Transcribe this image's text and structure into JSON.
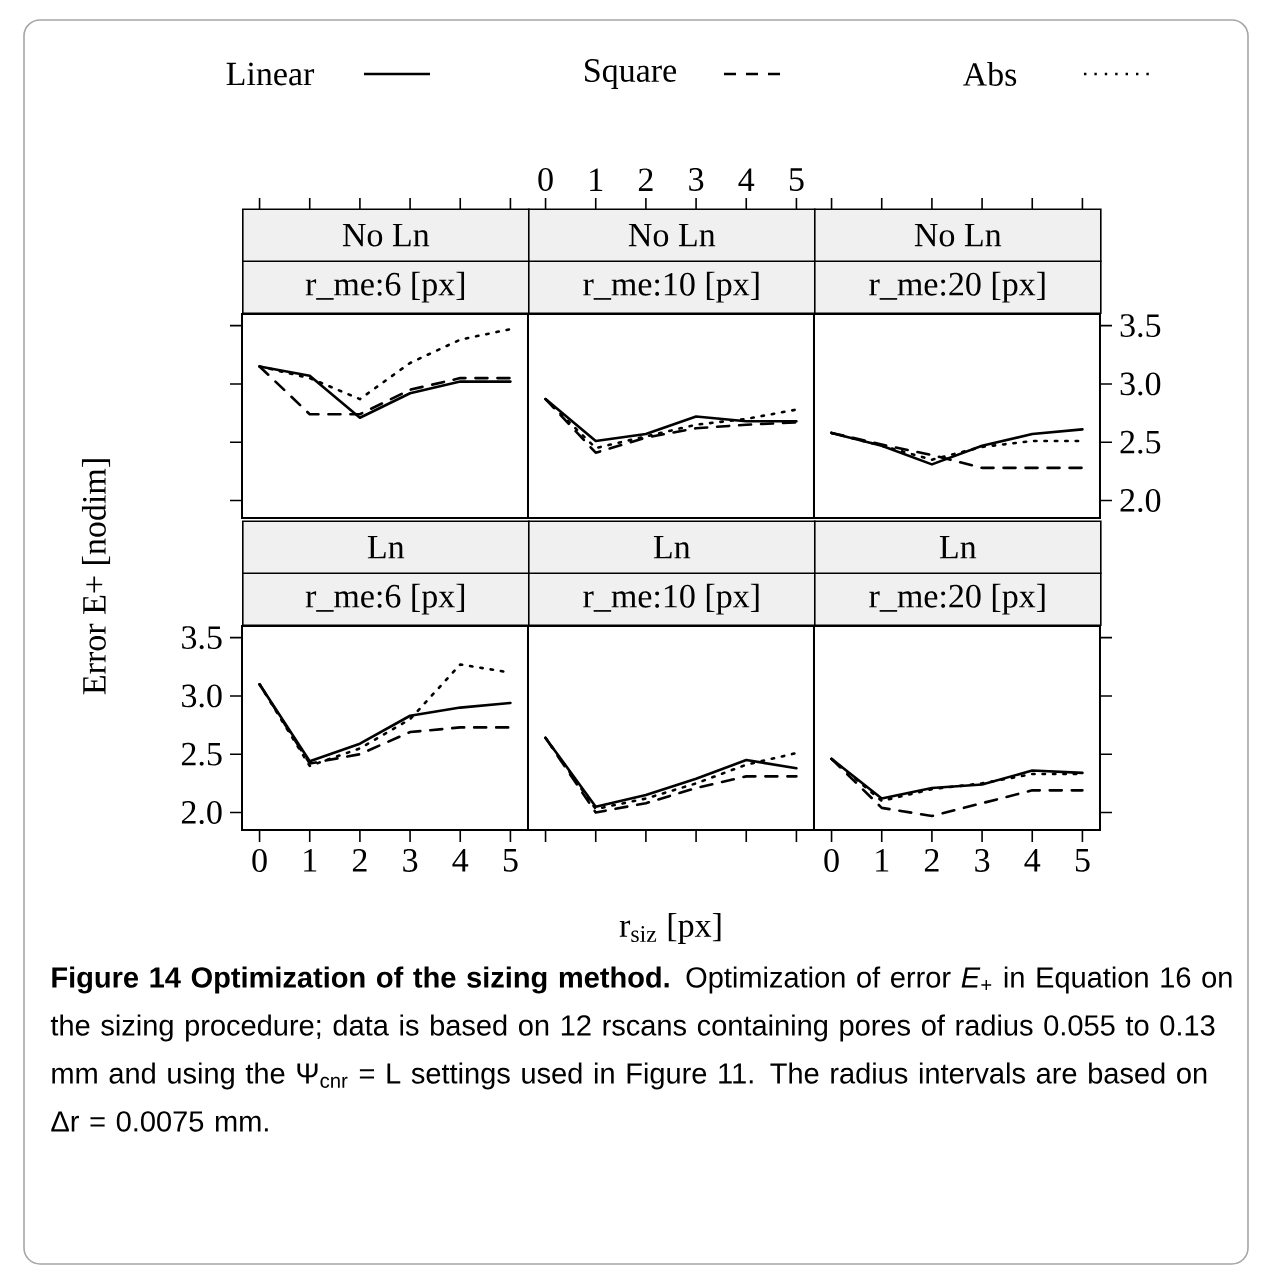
{
  "chart_data": [
    {
      "type": "line",
      "title": "No Ln",
      "subtitle": "r_me:6 [px]",
      "legend": "top",
      "ylabel": "Error E+ [nodim]",
      "x": [
        0,
        1,
        2,
        3,
        4,
        5
      ],
      "xlim": [
        -0.35,
        5.35
      ],
      "xticks": [
        0,
        1,
        2,
        3,
        4,
        5
      ],
      "ylim": [
        1.85,
        3.6
      ],
      "yticks": [
        2.0,
        2.5,
        3.0,
        3.5
      ],
      "tick_labels": false,
      "annotations": [
        "**Figure 14 Optimization of the sizing method.** Optimization of error *E*$_{+}$ in Equation 16 on the sizing procedure; data is based on 12 rscans containing pores of radius 0.055 to 0.13 mm and using the Ψ$_{cnr}$ = L settings used in Figure 11. The radius intervals are based on Δr = 0.0075 mm."
      ],
      "series": [
        {
          "name": "Linear",
          "color": "#000000",
          "line_style": "solid",
          "values": [
            3.15,
            3.07,
            2.71,
            2.92,
            3.02,
            3.02
          ]
        },
        {
          "name": "Square",
          "color": "#000000",
          "line_style": "dashed",
          "values": [
            3.15,
            2.74,
            2.74,
            2.95,
            3.05,
            3.05
          ]
        },
        {
          "name": "Abs",
          "color": "#000000",
          "line_style": "dotted",
          "values": [
            3.15,
            3.05,
            2.87,
            3.18,
            3.38,
            3.47
          ]
        }
      ]
    },
    {
      "type": "line",
      "title": "No Ln",
      "subtitle": "r_me:10 [px]",
      "x": [
        0,
        1,
        2,
        3,
        4,
        5
      ],
      "xlim": [
        -0.35,
        5.35
      ],
      "xticks": [
        0,
        1,
        2,
        3,
        4,
        5
      ],
      "ylim": [
        1.85,
        3.6
      ],
      "yticks": [
        2.0,
        2.5,
        3.0,
        3.5
      ],
      "tick_labels": "x",
      "series": [
        {
          "color": "#000000",
          "line_style": "solid",
          "values": [
            2.87,
            2.51,
            2.57,
            2.72,
            2.68,
            2.68
          ]
        },
        {
          "color": "#000000",
          "line_style": "dashed",
          "values": [
            2.87,
            2.41,
            2.54,
            2.62,
            2.65,
            2.67
          ]
        },
        {
          "color": "#000000",
          "line_style": "dotted",
          "values": [
            2.87,
            2.45,
            2.55,
            2.65,
            2.7,
            2.78
          ]
        }
      ]
    },
    {
      "type": "line",
      "title": "No Ln",
      "subtitle": "r_me:20 [px]",
      "x": [
        0,
        1,
        2,
        3,
        4,
        5
      ],
      "xlim": [
        -0.35,
        5.35
      ],
      "xticks": [
        0,
        1,
        2,
        3,
        4,
        5
      ],
      "y2lim": [
        1.85,
        3.6
      ],
      "y2ticks": [
        {
          "value": 2,
          "label": "2.0"
        },
        2.5,
        {
          "value": 3,
          "label": "3.0"
        },
        3.5
      ],
      "tick_labels": "y",
      "series": [
        {
          "color": "#000000",
          "axis": "y2",
          "line_style": "solid",
          "values": [
            2.58,
            2.47,
            2.31,
            2.47,
            2.57,
            2.61
          ]
        },
        {
          "color": "#000000",
          "axis": "y2",
          "line_style": "dashed",
          "values": [
            2.58,
            2.48,
            2.39,
            2.28,
            2.28,
            2.28
          ]
        },
        {
          "color": "#000000",
          "axis": "y2",
          "line_style": "dotted",
          "values": [
            2.58,
            2.47,
            2.35,
            2.46,
            2.51,
            2.51
          ]
        }
      ]
    },
    {
      "type": "line",
      "title": "Ln",
      "subtitle": "r_me:6 [px]",
      "x": [
        0,
        1,
        2,
        3,
        4,
        5
      ],
      "xlim": [
        -0.35,
        5.35
      ],
      "xticks": [
        0,
        1,
        2,
        3,
        4,
        5
      ],
      "ylim": [
        1.85,
        3.6
      ],
      "yticks": [
        {
          "value": 2,
          "label": "2.0"
        },
        2.5,
        {
          "value": 3,
          "label": "3.0"
        },
        3.5
      ],
      "series": [
        {
          "color": "#000000",
          "line_style": "solid",
          "values": [
            3.1,
            2.44,
            2.59,
            2.83,
            2.9,
            2.94
          ]
        },
        {
          "color": "#000000",
          "line_style": "dashed",
          "values": [
            3.1,
            2.42,
            2.5,
            2.69,
            2.73,
            2.73
          ]
        },
        {
          "color": "#000000",
          "line_style": "dotted",
          "values": [
            3.1,
            2.4,
            2.55,
            2.8,
            3.27,
            3.2
          ]
        }
      ]
    },
    {
      "type": "line",
      "title": "Ln",
      "subtitle": "r_me:10 [px]",
      "xlabel": "r$_{siz}$ [px]",
      "x": [
        0,
        1,
        2,
        3,
        4,
        5
      ],
      "xlim": [
        -0.35,
        5.35
      ],
      "xticks": [
        0,
        1,
        2,
        3,
        4,
        5
      ],
      "ylim": [
        1.85,
        3.6
      ],
      "yticks": [
        2.0,
        2.5,
        3.0,
        3.5
      ],
      "tick_labels": false,
      "series": [
        {
          "color": "#000000",
          "line_style": "solid",
          "values": [
            2.64,
            2.05,
            2.15,
            2.29,
            2.45,
            2.38
          ]
        },
        {
          "color": "#000000",
          "line_style": "dashed",
          "values": [
            2.64,
            2.0,
            2.08,
            2.21,
            2.31,
            2.31
          ]
        },
        {
          "color": "#000000",
          "line_style": "dotted",
          "values": [
            2.64,
            2.03,
            2.12,
            2.25,
            2.41,
            2.51
          ]
        }
      ]
    },
    {
      "type": "line",
      "title": "Ln",
      "subtitle": "r_me:20 [px]",
      "x": [
        0,
        1,
        2,
        3,
        4,
        5
      ],
      "xlim": [
        -0.35,
        5.35
      ],
      "xticks": [
        0,
        1,
        2,
        3,
        4,
        5
      ],
      "ylim": [
        1.85,
        3.6
      ],
      "yticks": [
        2.0,
        2.5,
        3.0,
        3.5
      ],
      "tick_labels": "x",
      "series": [
        {
          "color": "#000000",
          "line_style": "solid",
          "values": [
            2.46,
            2.12,
            2.21,
            2.24,
            2.36,
            2.34
          ]
        },
        {
          "color": "#000000",
          "line_style": "dashed",
          "values": [
            2.46,
            2.04,
            1.97,
            2.08,
            2.19,
            2.19
          ]
        },
        {
          "color": "#000000",
          "line_style": "dotted",
          "values": [
            2.46,
            2.1,
            2.2,
            2.25,
            2.33,
            2.33
          ]
        }
      ]
    }
  ]
}
